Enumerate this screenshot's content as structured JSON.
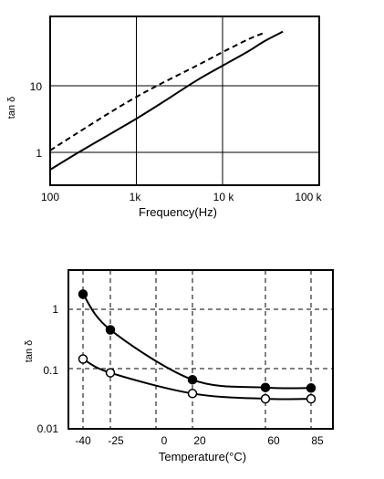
{
  "chart_data": [
    {
      "type": "line",
      "xscale": "log",
      "yscale": "log",
      "xlabel": "Frequency(Hz)",
      "ylabel": "tan δ",
      "xlim": [
        100,
        100000
      ],
      "ylim": [
        0.5,
        80
      ],
      "grid": true,
      "x_tick_labels": [
        "100",
        "1k",
        "10 k",
        "100 k"
      ],
      "y_tick_labels": [
        "1",
        "10"
      ],
      "series": [
        {
          "style": "dashed",
          "x": [
            100,
            200,
            500,
            1000,
            2000,
            5000,
            10000,
            20000,
            30000
          ],
          "y": [
            1.07,
            1.9,
            4.0,
            6.8,
            11,
            20,
            32,
            50,
            62
          ]
        },
        {
          "style": "solid",
          "x": [
            100,
            200,
            500,
            1000,
            2000,
            5000,
            10000,
            20000,
            30000,
            50000
          ],
          "y": [
            0.55,
            0.95,
            1.9,
            3.2,
            5.6,
            12,
            20,
            33,
            46,
            65
          ]
        }
      ]
    },
    {
      "type": "line",
      "yscale": "log",
      "xlabel": "Temperature(°C)",
      "ylabel": "tan δ",
      "xlim": [
        -45,
        90
      ],
      "ylim": [
        0.01,
        5
      ],
      "grid": true,
      "x_tick_labels": [
        "-40",
        "-25",
        "0",
        "20",
        "60",
        "85"
      ],
      "y_tick_labels": [
        "1",
        "0.1",
        "0.01"
      ],
      "series": [
        {
          "marker": "filled",
          "x": [
            -40,
            -25,
            20,
            60,
            85
          ],
          "y": [
            1.8,
            0.45,
            0.065,
            0.048,
            0.047
          ]
        },
        {
          "marker": "open",
          "x": [
            -40,
            -25,
            20,
            60,
            85
          ],
          "y": [
            0.145,
            0.085,
            0.038,
            0.031,
            0.031
          ]
        }
      ]
    }
  ]
}
